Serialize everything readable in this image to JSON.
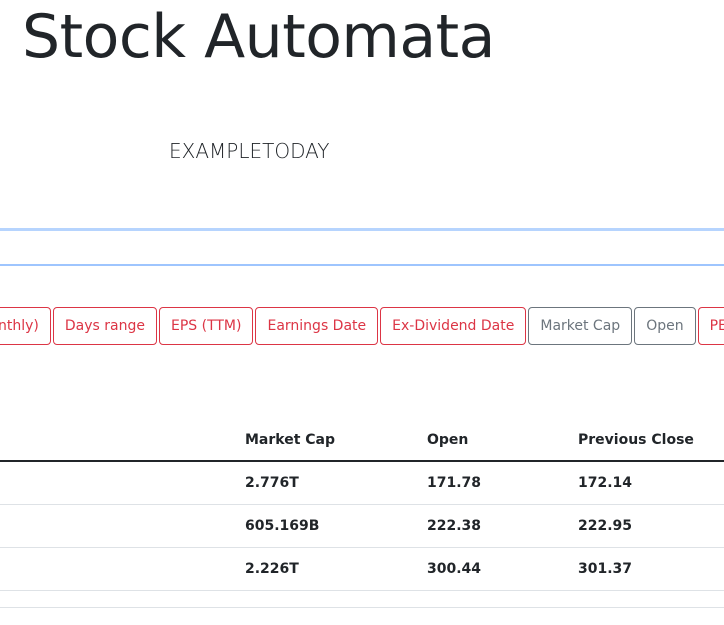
{
  "app": {
    "title": "Stock Automata",
    "subtitle": "EXAMPLETODAY"
  },
  "search": {
    "value": "",
    "placeholder": ""
  },
  "column_buttons": [
    {
      "label": "nthly)",
      "active": false
    },
    {
      "label": "Days range",
      "active": false
    },
    {
      "label": "EPS (TTM)",
      "active": false
    },
    {
      "label": "Earnings Date",
      "active": false
    },
    {
      "label": "Ex-Dividend Date",
      "active": false
    },
    {
      "label": "Market Cap",
      "active": true
    },
    {
      "label": "Open",
      "active": true
    },
    {
      "label": "PE",
      "active": false
    }
  ],
  "table": {
    "headers": [
      "",
      "Market Cap",
      "Open",
      "Previous Close"
    ],
    "rows": [
      [
        "",
        "2.776T",
        "171.78",
        "172.14"
      ],
      [
        "",
        "605.169B",
        "222.38",
        "222.95"
      ],
      [
        "",
        "2.226T",
        "300.44",
        "301.37"
      ]
    ]
  },
  "colors": {
    "inactive_button": "#dc3545",
    "active_button": "#6c757d",
    "search_border": "#86b7fe"
  }
}
